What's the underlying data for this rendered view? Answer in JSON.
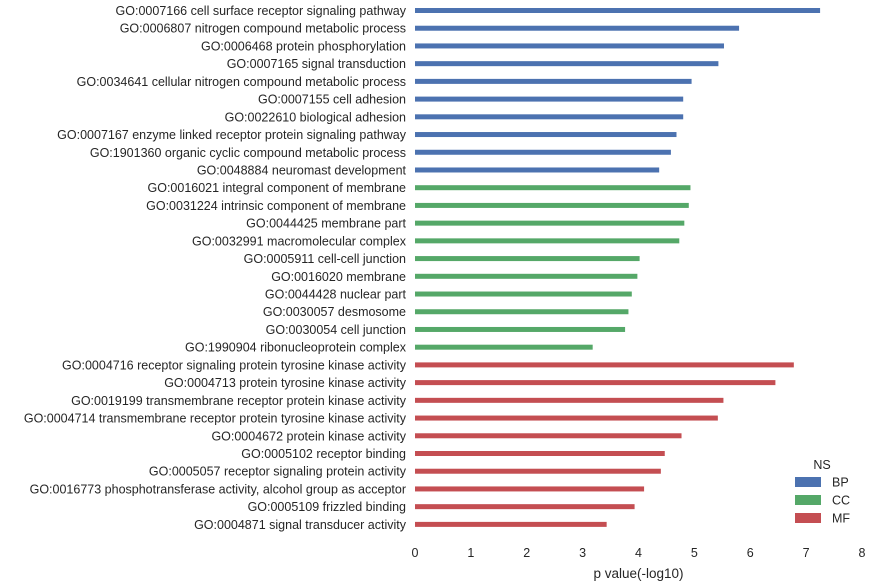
{
  "chart_data": {
    "type": "bar",
    "orientation": "horizontal",
    "xlabel": "p value(-log10)",
    "ylabel": "",
    "xlim": [
      0,
      8
    ],
    "xticks": [
      "0",
      "1",
      "2",
      "3",
      "4",
      "5",
      "6",
      "7",
      "8"
    ],
    "grid": false,
    "legend": {
      "title": "NS",
      "position": "bottom-right",
      "entries": [
        {
          "name": "BP",
          "color": "#4c72b0"
        },
        {
          "name": "CC",
          "color": "#55a868"
        },
        {
          "name": "MF",
          "color": "#c44e52"
        }
      ]
    },
    "categories": [
      {
        "label": "GO:0007166 cell surface receptor signaling pathway",
        "value": 7.25,
        "ns": "BP"
      },
      {
        "label": "GO:0006807 nitrogen compound metabolic process",
        "value": 5.8,
        "ns": "BP"
      },
      {
        "label": "GO:0006468 protein phosphorylation",
        "value": 5.53,
        "ns": "BP"
      },
      {
        "label": "GO:0007165 signal transduction",
        "value": 5.43,
        "ns": "BP"
      },
      {
        "label": "GO:0034641 cellular nitrogen compound metabolic process",
        "value": 4.95,
        "ns": "BP"
      },
      {
        "label": "GO:0007155 cell adhesion",
        "value": 4.8,
        "ns": "BP"
      },
      {
        "label": "GO:0022610 biological adhesion",
        "value": 4.8,
        "ns": "BP"
      },
      {
        "label": "GO:0007167 enzyme linked receptor protein signaling pathway",
        "value": 4.68,
        "ns": "BP"
      },
      {
        "label": "GO:1901360 organic cyclic compound metabolic process",
        "value": 4.58,
        "ns": "BP"
      },
      {
        "label": "GO:0048884 neuromast development",
        "value": 4.37,
        "ns": "BP"
      },
      {
        "label": "GO:0016021 integral component of membrane",
        "value": 4.93,
        "ns": "CC"
      },
      {
        "label": "GO:0031224 intrinsic component of membrane",
        "value": 4.9,
        "ns": "CC"
      },
      {
        "label": "GO:0044425 membrane part",
        "value": 4.82,
        "ns": "CC"
      },
      {
        "label": "GO:0032991 macromolecular complex",
        "value": 4.73,
        "ns": "CC"
      },
      {
        "label": "GO:0005911 cell-cell junction",
        "value": 4.02,
        "ns": "CC"
      },
      {
        "label": "GO:0016020 membrane",
        "value": 3.98,
        "ns": "CC"
      },
      {
        "label": "GO:0044428 nuclear part",
        "value": 3.88,
        "ns": "CC"
      },
      {
        "label": "GO:0030057 desmosome",
        "value": 3.82,
        "ns": "CC"
      },
      {
        "label": "GO:0030054 cell junction",
        "value": 3.76,
        "ns": "CC"
      },
      {
        "label": "GO:1990904 ribonucleoprotein complex",
        "value": 3.18,
        "ns": "CC"
      },
      {
        "label": "GO:0004716 receptor signaling protein tyrosine kinase activity",
        "value": 6.78,
        "ns": "MF"
      },
      {
        "label": "GO:0004713 protein tyrosine kinase activity",
        "value": 6.45,
        "ns": "MF"
      },
      {
        "label": "GO:0019199 transmembrane receptor protein kinase activity",
        "value": 5.52,
        "ns": "MF"
      },
      {
        "label": "GO:0004714 transmembrane receptor protein tyrosine kinase activity",
        "value": 5.42,
        "ns": "MF"
      },
      {
        "label": "GO:0004672 protein kinase activity",
        "value": 4.77,
        "ns": "MF"
      },
      {
        "label": "GO:0005102 receptor binding",
        "value": 4.47,
        "ns": "MF"
      },
      {
        "label": "GO:0005057 receptor signaling protein activity",
        "value": 4.4,
        "ns": "MF"
      },
      {
        "label": "GO:0016773 phosphotransferase activity, alcohol group as acceptor",
        "value": 4.1,
        "ns": "MF"
      },
      {
        "label": "GO:0005109 frizzled binding",
        "value": 3.93,
        "ns": "MF"
      },
      {
        "label": "GO:0004871 signal transducer activity",
        "value": 3.43,
        "ns": "MF"
      }
    ]
  }
}
